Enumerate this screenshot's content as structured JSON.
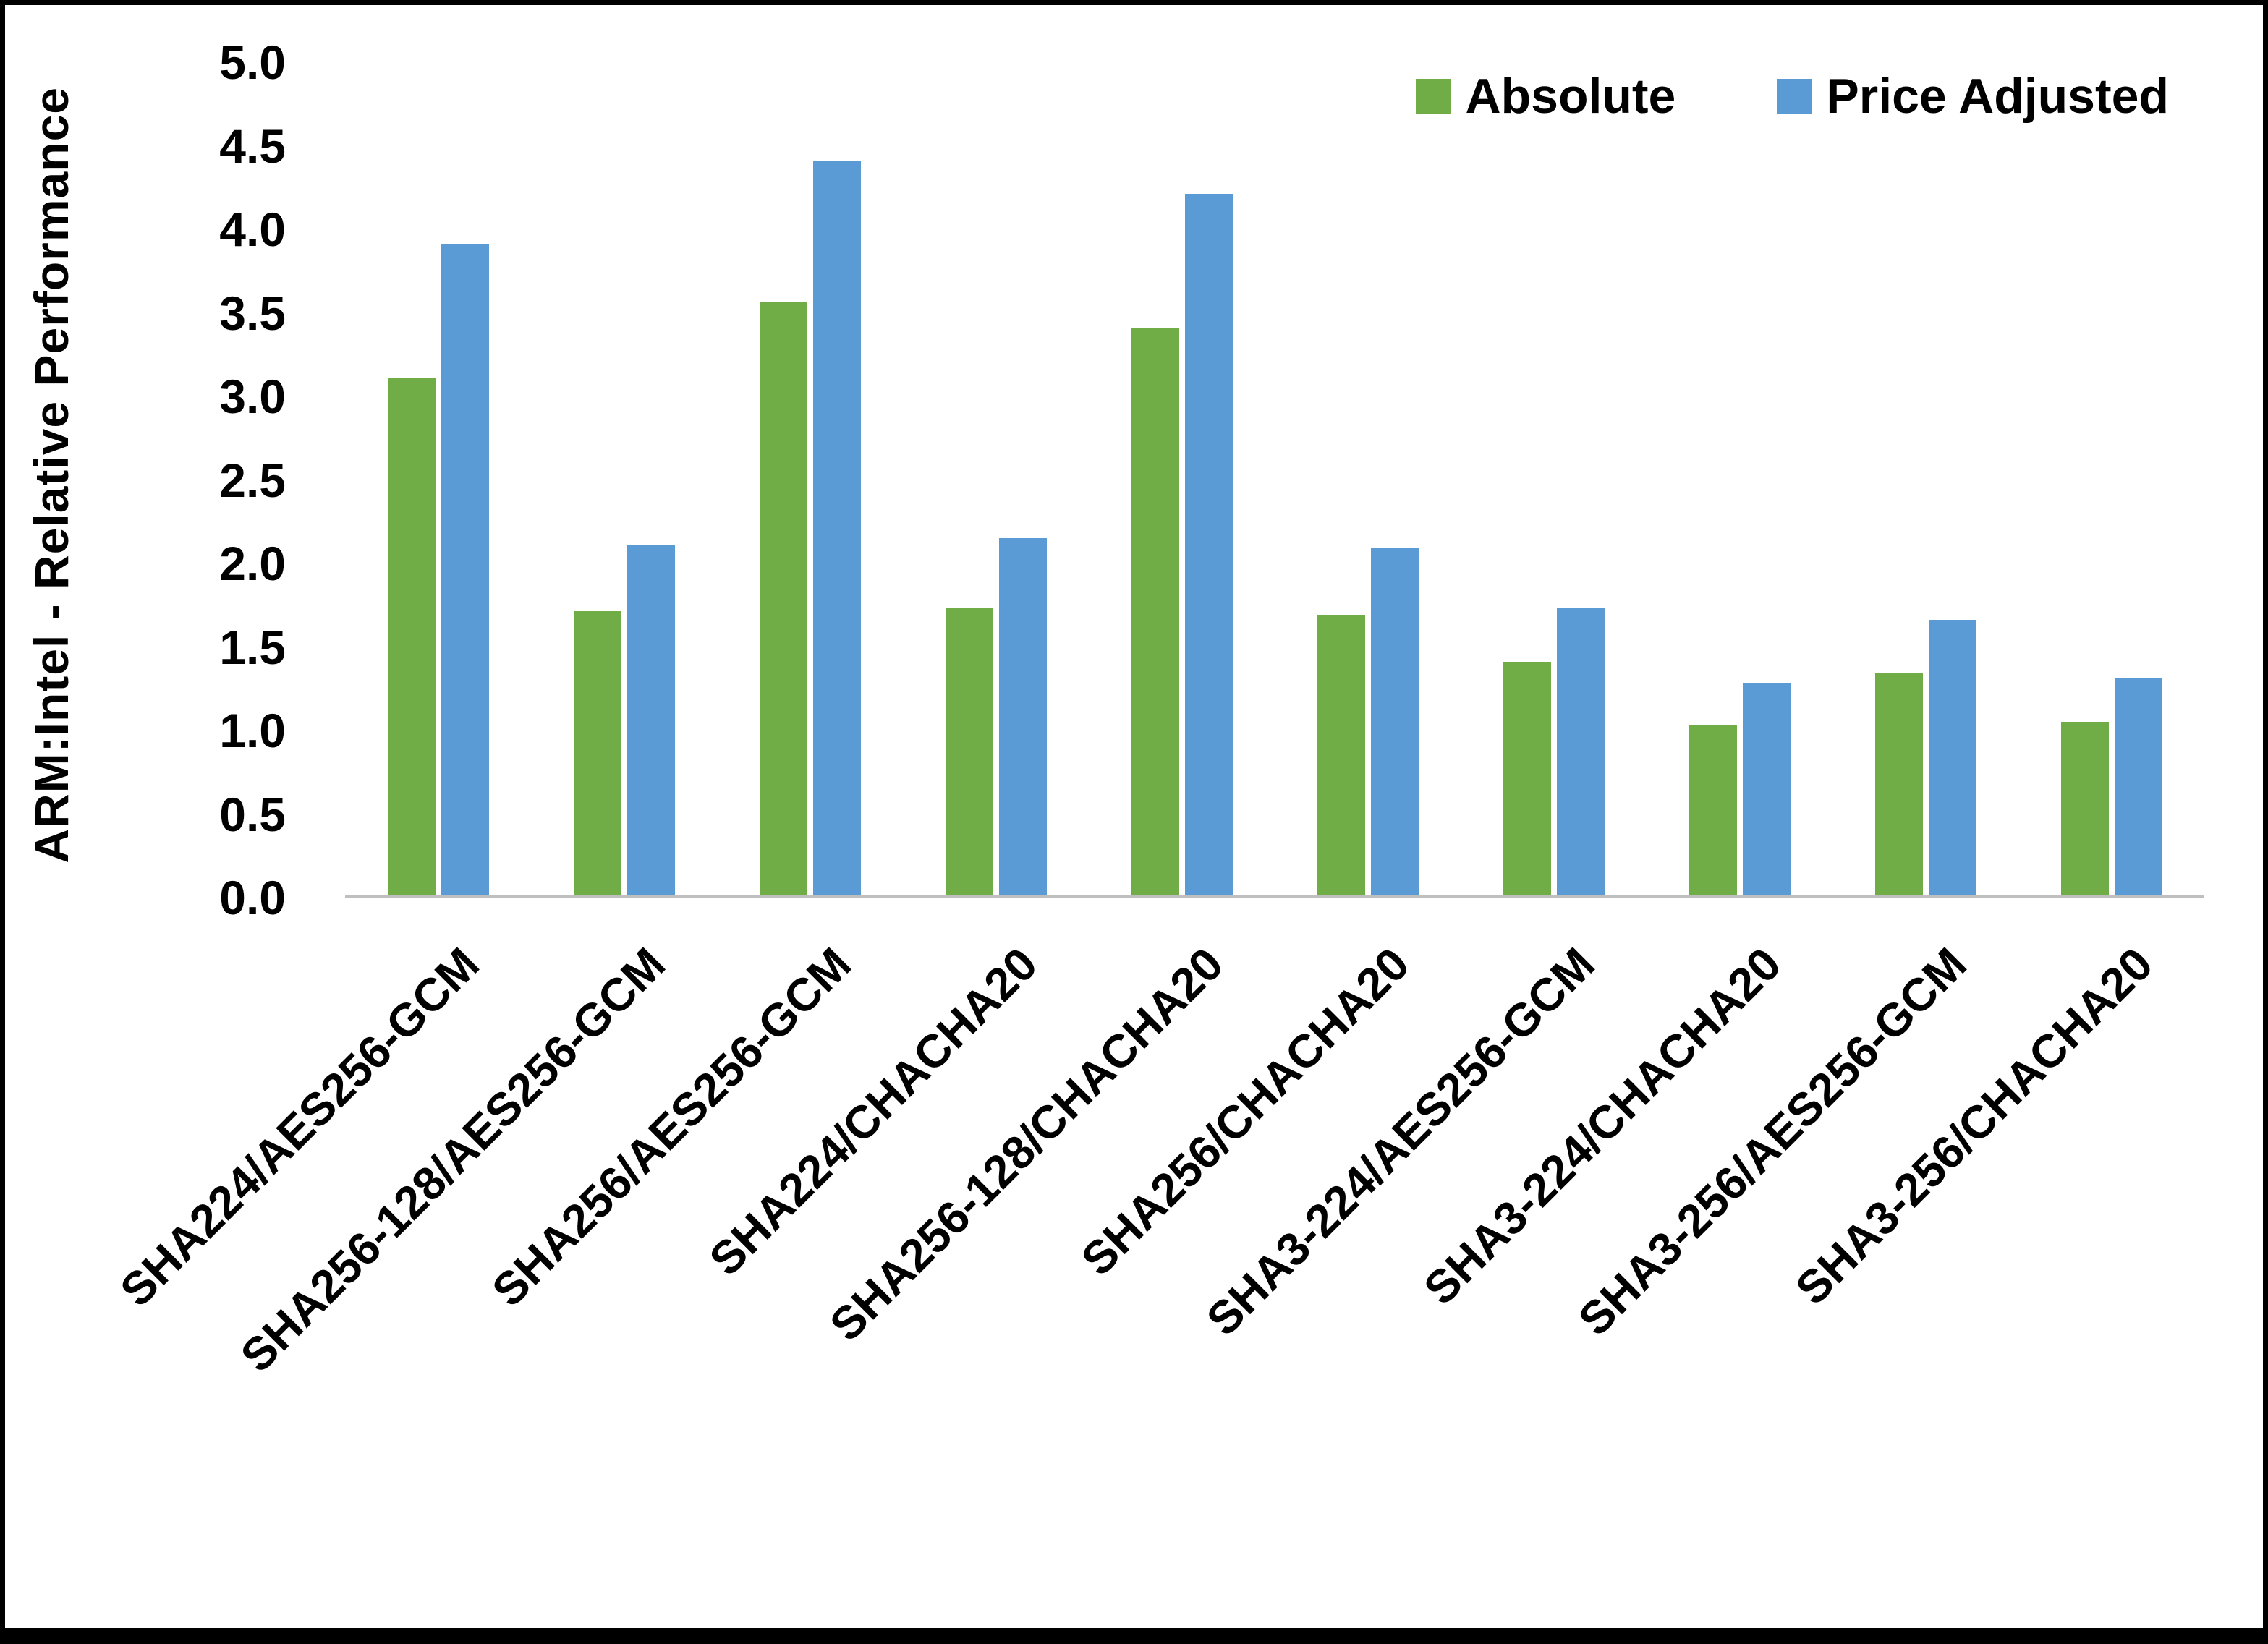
{
  "chart_data": {
    "type": "bar",
    "title": "",
    "xlabel": "",
    "ylabel": "ARM:Intel - Relative Performance",
    "ylim": [
      0,
      5
    ],
    "ytick_step": 0.5,
    "yticks": [
      "0.0",
      "0.5",
      "1.0",
      "1.5",
      "2.0",
      "2.5",
      "3.0",
      "3.5",
      "4.0",
      "4.5",
      "5.0"
    ],
    "grid": false,
    "legend_position": "top-right",
    "axis_line_color": "#BFBFBF",
    "background_color": "#FFFFFF",
    "border_color": "#000000",
    "categories": [
      "SHA224/AES256-GCM",
      "SHA256-128/AES256-GCM",
      "SHA256/AES256-GCM",
      "SHA224/CHACHA20",
      "SHA256-128/CHACHA20",
      "SHA256/CHACHA20",
      "SHA3-224/AES256-GCM",
      "SHA3-224/CHACHA20",
      "SHA3-256/AES256-GCM",
      "SHA3-256/CHACHA20"
    ],
    "series": [
      {
        "name": "Absolute",
        "color": "#70AD47",
        "values": [
          3.1,
          1.7,
          3.55,
          1.72,
          3.4,
          1.68,
          1.4,
          1.02,
          1.33,
          1.04
        ]
      },
      {
        "name": "Price Adjusted",
        "color": "#5B9BD5",
        "values": [
          3.9,
          2.1,
          4.4,
          2.14,
          4.2,
          2.08,
          1.72,
          1.27,
          1.65,
          1.3
        ]
      }
    ]
  }
}
